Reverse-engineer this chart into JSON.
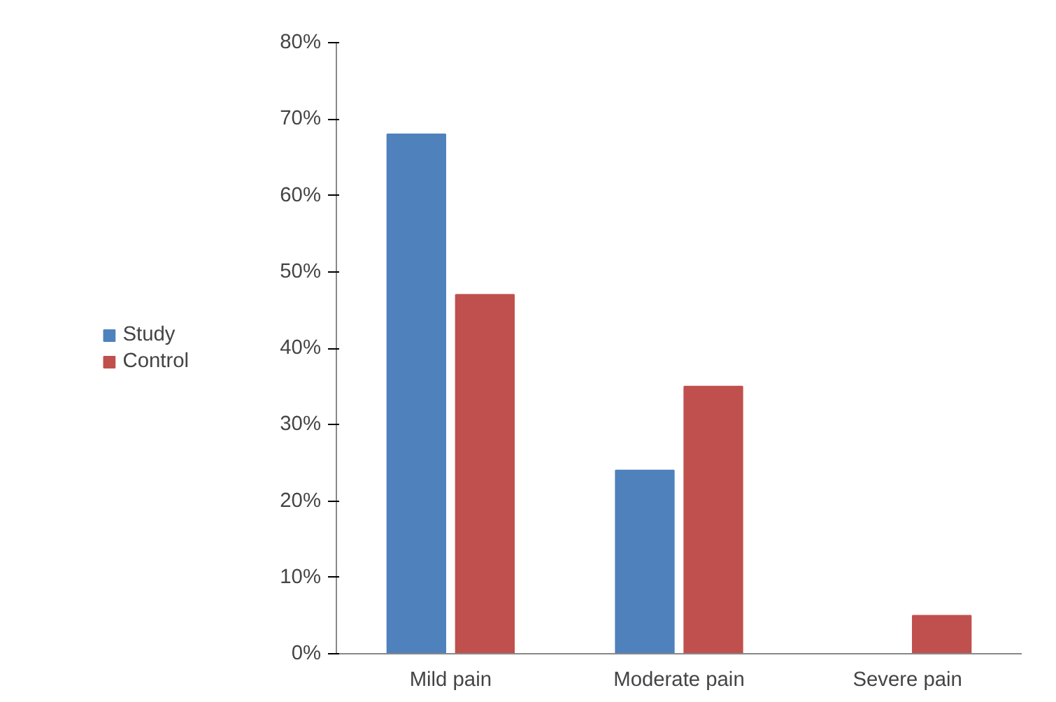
{
  "chart_data": {
    "type": "bar",
    "categories": [
      "Mild pain",
      "Moderate pain",
      "Severe pain"
    ],
    "series": [
      {
        "name": "Study",
        "color": "#4f81bd",
        "values": [
          68,
          24,
          0
        ]
      },
      {
        "name": "Control",
        "color": "#c0504d",
        "values": [
          47,
          35,
          5
        ]
      }
    ],
    "ylim": [
      0,
      80
    ],
    "yticks": [
      {
        "value": 0,
        "label": "0%"
      },
      {
        "value": 10,
        "label": "10%"
      },
      {
        "value": 20,
        "label": "20%"
      },
      {
        "value": 30,
        "label": "30%"
      },
      {
        "value": 40,
        "label": "40%"
      },
      {
        "value": 50,
        "label": "50%"
      },
      {
        "value": 60,
        "label": "60%"
      },
      {
        "value": 70,
        "label": "70%"
      },
      {
        "value": 80,
        "label": "80%"
      }
    ],
    "grid": false,
    "legend": "left"
  }
}
